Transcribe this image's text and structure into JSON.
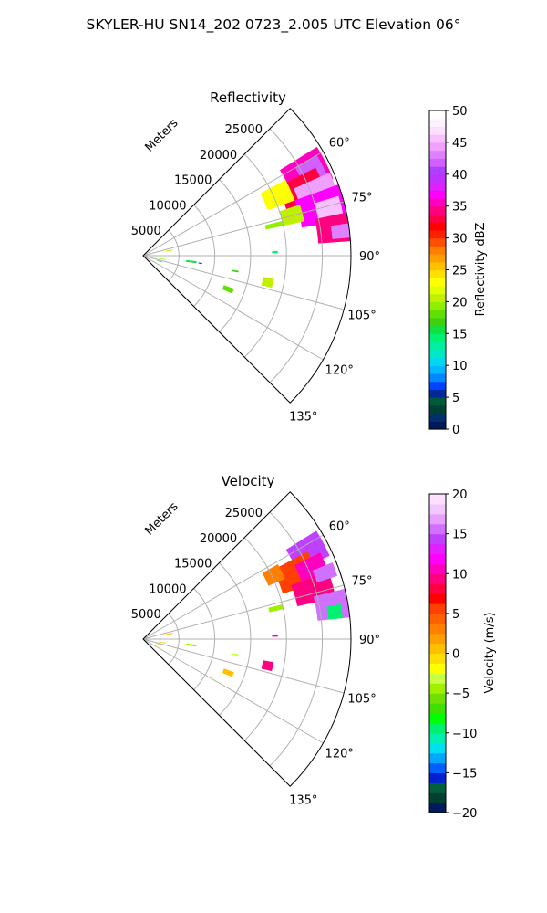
{
  "figure_title": "SKYLER-HU  SN14_202  0723_2.005 UTC Elevation 06°",
  "chart_data": [
    {
      "type": "heatmap",
      "subtitle": "Reflectivity",
      "radial_axis_label": "Meters",
      "range_tick_labels": [
        "5000",
        "10000",
        "15000",
        "20000",
        "25000"
      ],
      "range_ticks": [
        5000,
        10000,
        15000,
        20000,
        25000
      ],
      "azimuth_tick_labels": [
        "60°",
        "75°",
        "90°",
        "105°",
        "120°",
        "135°"
      ],
      "azimuth_ticks_deg": [
        60,
        75,
        90,
        105,
        120,
        135
      ],
      "azimuth_range_deg": [
        45,
        135
      ],
      "range_max_m": 29000,
      "grid": true,
      "colorbar": {
        "label": "Reflectivity dBZ",
        "min": 0,
        "max": 50,
        "ticks": [
          0,
          5,
          10,
          15,
          20,
          25,
          30,
          35,
          40,
          45,
          50
        ],
        "tick_labels": [
          "0",
          "5",
          "10",
          "15",
          "20",
          "25",
          "30",
          "35",
          "40",
          "45",
          "50"
        ],
        "colors": [
          "#001a5c",
          "#00306e",
          "#004030",
          "#005a3a",
          "#00289a",
          "#0044ff",
          "#0088ff",
          "#00b8ff",
          "#00d8f0",
          "#00e8c8",
          "#00f0a0",
          "#00f070",
          "#10e040",
          "#40d010",
          "#60e000",
          "#90f000",
          "#c0f000",
          "#e0ff00",
          "#ffff00",
          "#ffe000",
          "#ffc000",
          "#ffa000",
          "#ff8000",
          "#ff5000",
          "#ff2000",
          "#ff0000",
          "#ff0040",
          "#ff0080",
          "#ff00c0",
          "#ff00ff",
          "#e020ff",
          "#c030ff",
          "#b040ff",
          "#d060ff",
          "#e080ff",
          "#f0a0ff",
          "#f8c0ff",
          "#fce0ff",
          "#fff0ff",
          "#ffffff"
        ]
      },
      "echoes": [
        {
          "az": [
            58,
            68
          ],
          "r": [
            22500,
            28600
          ],
          "value": 36
        },
        {
          "az": [
            60,
            66
          ],
          "r": [
            24500,
            28000
          ],
          "value": 42
        },
        {
          "az": [
            63,
            72
          ],
          "r": [
            21000,
            27000
          ],
          "value": 33
        },
        {
          "az": [
            66,
            74
          ],
          "r": [
            23000,
            28500
          ],
          "value": 44
        },
        {
          "az": [
            70,
            80
          ],
          "r": [
            22500,
            29000
          ],
          "value": 37
        },
        {
          "az": [
            73,
            79
          ],
          "r": [
            25000,
            28500
          ],
          "value": 46
        },
        {
          "az": [
            78,
            86
          ],
          "r": [
            24500,
            29000
          ],
          "value": 34
        },
        {
          "az": [
            81,
            85
          ],
          "r": [
            26500,
            29000
          ],
          "value": 43
        },
        {
          "az": [
            62,
            70
          ],
          "r": [
            18500,
            22500
          ],
          "value": 23
        },
        {
          "az": [
            72,
            78
          ],
          "r": [
            20000,
            23000
          ],
          "value": 21
        },
        {
          "az": [
            76,
            78
          ],
          "r": [
            17500,
            20000
          ],
          "value": 19
        },
        {
          "az": [
            88,
            89
          ],
          "r": [
            18000,
            18800
          ],
          "value": 14
        },
        {
          "az": [
            100,
            104
          ],
          "r": [
            17000,
            18500
          ],
          "value": 20
        },
        {
          "az": [
            99,
            100
          ],
          "r": [
            12500,
            13500
          ],
          "value": 17
        },
        {
          "az": [
            110,
            113
          ],
          "r": [
            12000,
            13500
          ],
          "value": 18
        },
        {
          "az": [
            96,
            98
          ],
          "r": [
            6000,
            7500
          ],
          "value": 15
        },
        {
          "az": [
            97,
            98
          ],
          "r": [
            7800,
            8300
          ],
          "value": 5
        },
        {
          "az": [
            78,
            80
          ],
          "r": [
            3200,
            4200
          ],
          "value": 20
        },
        {
          "az": [
            99,
            101
          ],
          "r": [
            2200,
            3200
          ],
          "value": 19
        },
        {
          "az": [
            108,
            110
          ],
          "r": [
            2000,
            2800
          ],
          "value": 17
        }
      ]
    },
    {
      "type": "heatmap",
      "subtitle": "Velocity",
      "radial_axis_label": "Meters",
      "range_tick_labels": [
        "5000",
        "10000",
        "15000",
        "20000",
        "25000"
      ],
      "range_ticks": [
        5000,
        10000,
        15000,
        20000,
        25000
      ],
      "azimuth_tick_labels": [
        "60°",
        "75°",
        "90°",
        "105°",
        "120°",
        "135°"
      ],
      "azimuth_ticks_deg": [
        60,
        75,
        90,
        105,
        120,
        135
      ],
      "azimuth_range_deg": [
        45,
        135
      ],
      "range_max_m": 29000,
      "grid": true,
      "colorbar": {
        "label": "Velocity (m/s)",
        "min": -20,
        "max": 20,
        "ticks": [
          -20,
          -15,
          -10,
          -5,
          0,
          5,
          10,
          15,
          20
        ],
        "tick_labels": [
          "−20",
          "−15",
          "−10",
          "−5",
          "0",
          "5",
          "10",
          "15",
          "20"
        ],
        "colors": [
          "#001a5c",
          "#004030",
          "#00603a",
          "#0020d0",
          "#0060ff",
          "#00a8ff",
          "#00e0f0",
          "#00f0b0",
          "#00f070",
          "#00ff00",
          "#40e000",
          "#70e000",
          "#a0f000",
          "#c8ff40",
          "#ffff00",
          "#ffe000",
          "#ffc000",
          "#ffa000",
          "#ff8000",
          "#ff6000",
          "#ff4000",
          "#ff0000",
          "#ff0040",
          "#ff0080",
          "#ff00c0",
          "#ff00ff",
          "#e020ff",
          "#c040ff",
          "#d070ff",
          "#e8a0ff",
          "#f4c8ff",
          "#fce0ff"
        ]
      },
      "echoes": [
        {
          "az": [
            58,
            66
          ],
          "r": [
            23500,
            28500
          ],
          "value": 14
        },
        {
          "az": [
            62,
            72
          ],
          "r": [
            20500,
            26000
          ],
          "value": 5
        },
        {
          "az": [
            64,
            70
          ],
          "r": [
            23500,
            27500
          ],
          "value": 11
        },
        {
          "az": [
            70,
            78
          ],
          "r": [
            22000,
            27500
          ],
          "value": 9
        },
        {
          "az": [
            68,
            72
          ],
          "r": [
            25500,
            28500
          ],
          "value": 15
        },
        {
          "az": [
            76,
            84
          ],
          "r": [
            24500,
            29000
          ],
          "value": 16
        },
        {
          "az": [
            80,
            84
          ],
          "r": [
            26000,
            28000
          ],
          "value": -9
        },
        {
          "az": [
            61,
            67
          ],
          "r": [
            19000,
            21500
          ],
          "value": 3
        },
        {
          "az": [
            76,
            78
          ],
          "r": [
            18000,
            20000
          ],
          "value": -4
        },
        {
          "az": [
            88,
            89
          ],
          "r": [
            18000,
            18800
          ],
          "value": 11
        },
        {
          "az": [
            100,
            104
          ],
          "r": [
            17000,
            18500
          ],
          "value": 9
        },
        {
          "az": [
            99,
            100
          ],
          "r": [
            12500,
            13500
          ],
          "value": -3
        },
        {
          "az": [
            110,
            113
          ],
          "r": [
            12000,
            13500
          ],
          "value": 1
        },
        {
          "az": [
            96,
            98
          ],
          "r": [
            6000,
            7500
          ],
          "value": -5
        },
        {
          "az": [
            78,
            80
          ],
          "r": [
            3200,
            4200
          ],
          "value": 1
        },
        {
          "az": [
            99,
            101
          ],
          "r": [
            2200,
            3200
          ],
          "value": 0
        },
        {
          "az": [
            108,
            110
          ],
          "r": [
            2000,
            2800
          ],
          "value": 1
        }
      ]
    }
  ]
}
